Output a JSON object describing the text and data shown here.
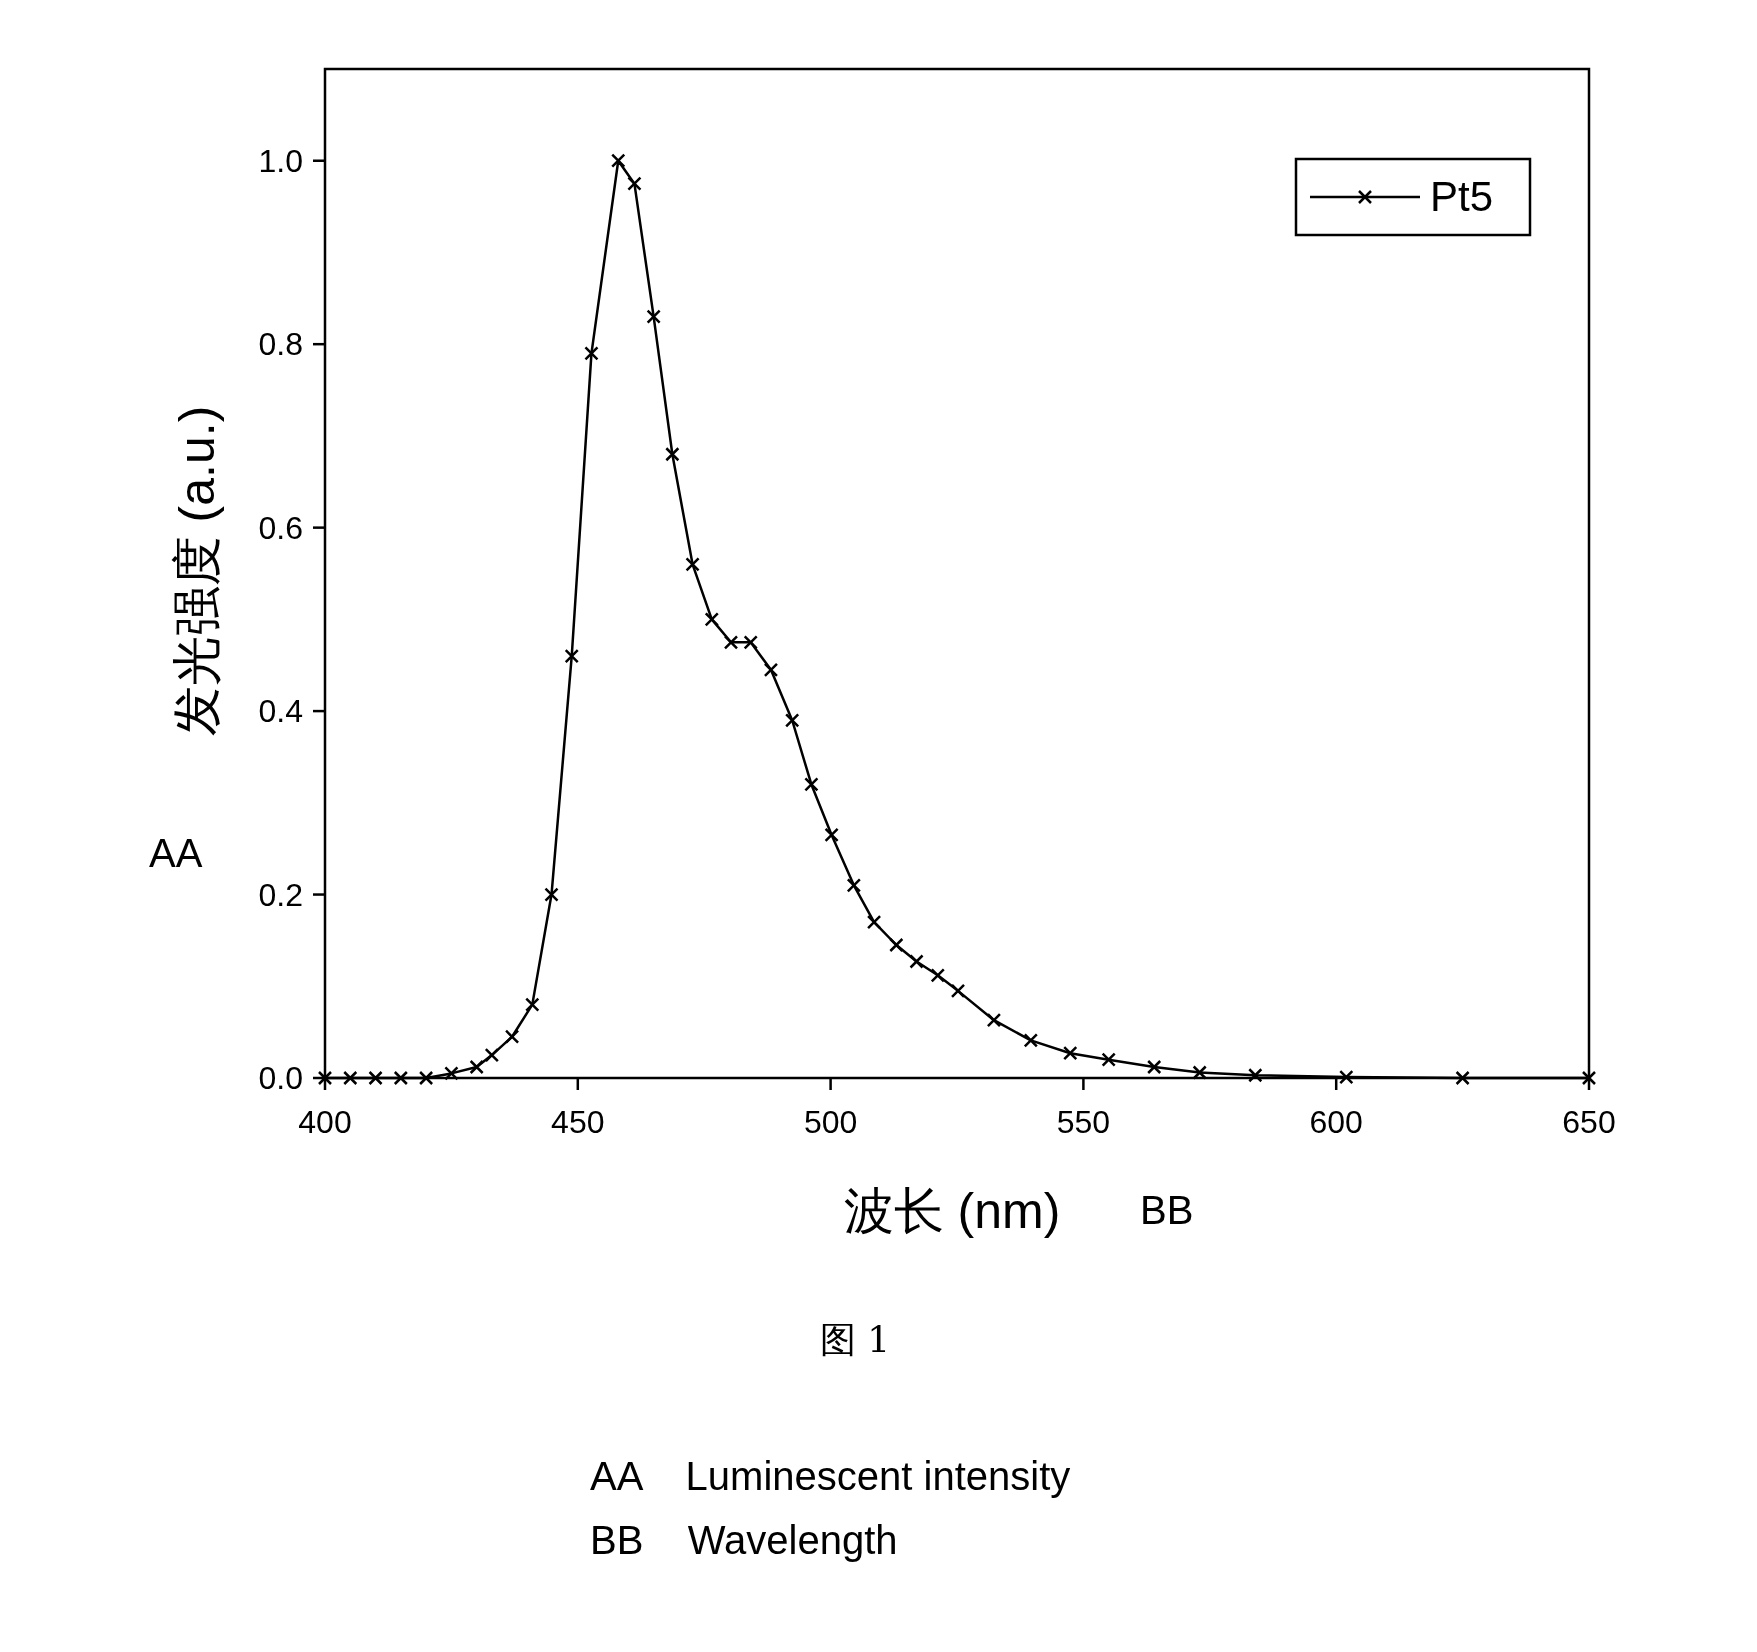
{
  "chart_data": {
    "type": "line",
    "xlabel": "波长 (nm)",
    "ylabel": "发光强度 (a.u.)",
    "x": [
      400,
      405,
      410,
      415,
      420,
      425,
      430,
      433,
      437,
      441,
      444.8,
      448.8,
      452.7,
      458,
      461.2,
      465,
      468.7,
      472.7,
      476.5,
      480.3,
      484.2,
      488.2,
      492.4,
      496.2,
      500.2,
      504.6,
      508.6,
      513,
      517,
      521.2,
      525.2,
      532.3,
      539.6,
      547.4,
      555,
      564,
      573,
      584,
      602,
      625,
      650
    ],
    "series": [
      {
        "name": "Pt5",
        "color": "#000000",
        "values": [
          0,
          0,
          0,
          0,
          0,
          0.005,
          0.012,
          0.025,
          0.045,
          0.08,
          0.2,
          0.46,
          0.79,
          1.0,
          0.975,
          0.83,
          0.68,
          0.56,
          0.5,
          0.475,
          0.475,
          0.445,
          0.39,
          0.32,
          0.265,
          0.21,
          0.17,
          0.145,
          0.127,
          0.112,
          0.095,
          0.063,
          0.041,
          0.027,
          0.02,
          0.012,
          0.006,
          0.003,
          0.001,
          0,
          0
        ]
      }
    ],
    "xlim": [
      400,
      650
    ],
    "ylim": [
      0,
      1.1
    ],
    "xticks": [
      400,
      450,
      500,
      550,
      600,
      650
    ],
    "yticks": [
      {
        "value": 0,
        "label": "0.0"
      },
      {
        "value": 0.2,
        "label": "0.2"
      },
      {
        "value": 0.4,
        "label": "0.4"
      },
      {
        "value": 0.6,
        "label": "0.6"
      },
      {
        "value": 0.8,
        "label": "0.8"
      },
      {
        "value": 1.0,
        "label": "1.0"
      }
    ],
    "legend": "top right",
    "marker": "cross",
    "line_style": "solid",
    "annotations": [
      "AA",
      "BB",
      "图 1",
      "AA    Luminescent intensity",
      "BB    Wavelength"
    ]
  }
}
